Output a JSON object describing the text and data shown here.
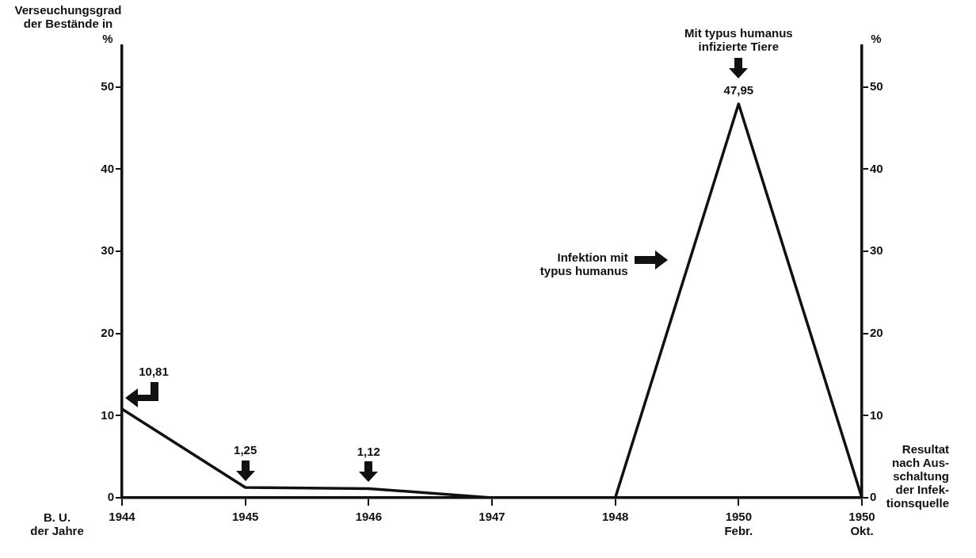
{
  "chart_data": {
    "type": "line",
    "categories": [
      "1944",
      "1945",
      "1946",
      "1947",
      "1948",
      "1950\nFebr.",
      "1950\nOkt."
    ],
    "series": [
      {
        "color": "#111111",
        "values": [
          10.81,
          1.25,
          1.12,
          0,
          0,
          47.95,
          0
        ],
        "value_labels": [
          "10,81",
          "1,25",
          "1,12",
          null,
          null,
          "47,95",
          null
        ]
      }
    ],
    "ylabel": "Verseuchungsgrad\nder Bestände in\n%",
    "y2label": "%",
    "xlabel": "B. U.\nder Jahre",
    "ylim": [
      0,
      55
    ],
    "yticks": [
      0,
      10,
      20,
      30,
      40,
      50
    ],
    "y2lim": [
      0,
      55
    ],
    "y2ticks": [
      0,
      10,
      20,
      30,
      40,
      50
    ],
    "annotations": [
      "Mit typus humanus\ninfizierte Tiere",
      "Infektion mit\ntypus humanus",
      {
        "text": "Resultat\nnach Aus-\nschaltung\nder Infek-\ntionsquelle",
        "x": "1950\nOkt.",
        "y": 0
      }
    ],
    "grid": false,
    "legend": false,
    "marker": "none",
    "line_style": "solid"
  }
}
